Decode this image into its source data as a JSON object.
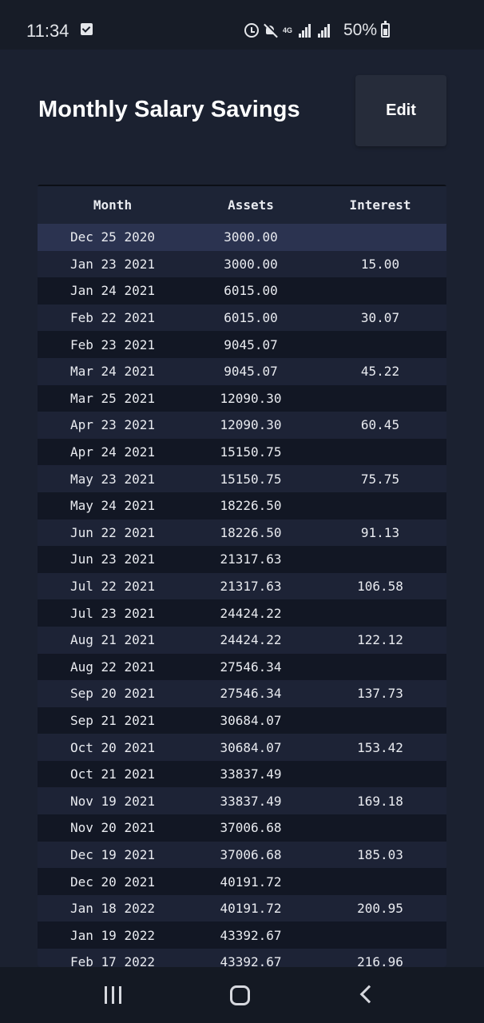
{
  "status_bar": {
    "time": "11:34",
    "network": "4G",
    "battery": "50%",
    "icons": [
      "check-notification-icon",
      "alarm-icon",
      "mute-icon",
      "signal-icon",
      "battery-icon"
    ]
  },
  "header": {
    "title": "Monthly Salary Savings",
    "edit_label": "Edit"
  },
  "table": {
    "columns": [
      "Month",
      "Assets",
      "Interest"
    ],
    "rows": [
      {
        "month": "Dec 25 2020",
        "assets": "3000.00",
        "interest": ""
      },
      {
        "month": "Jan 23 2021",
        "assets": "3000.00",
        "interest": "15.00"
      },
      {
        "month": "Jan 24 2021",
        "assets": "6015.00",
        "interest": ""
      },
      {
        "month": "Feb 22 2021",
        "assets": "6015.00",
        "interest": "30.07"
      },
      {
        "month": "Feb 23 2021",
        "assets": "9045.07",
        "interest": ""
      },
      {
        "month": "Mar 24 2021",
        "assets": "9045.07",
        "interest": "45.22"
      },
      {
        "month": "Mar 25 2021",
        "assets": "12090.30",
        "interest": ""
      },
      {
        "month": "Apr 23 2021",
        "assets": "12090.30",
        "interest": "60.45"
      },
      {
        "month": "Apr 24 2021",
        "assets": "15150.75",
        "interest": ""
      },
      {
        "month": "May 23 2021",
        "assets": "15150.75",
        "interest": "75.75"
      },
      {
        "month": "May 24 2021",
        "assets": "18226.50",
        "interest": ""
      },
      {
        "month": "Jun 22 2021",
        "assets": "18226.50",
        "interest": "91.13"
      },
      {
        "month": "Jun 23 2021",
        "assets": "21317.63",
        "interest": ""
      },
      {
        "month": "Jul 22 2021",
        "assets": "21317.63",
        "interest": "106.58"
      },
      {
        "month": "Jul 23 2021",
        "assets": "24424.22",
        "interest": ""
      },
      {
        "month": "Aug 21 2021",
        "assets": "24424.22",
        "interest": "122.12"
      },
      {
        "month": "Aug 22 2021",
        "assets": "27546.34",
        "interest": ""
      },
      {
        "month": "Sep 20 2021",
        "assets": "27546.34",
        "interest": "137.73"
      },
      {
        "month": "Sep 21 2021",
        "assets": "30684.07",
        "interest": ""
      },
      {
        "month": "Oct 20 2021",
        "assets": "30684.07",
        "interest": "153.42"
      },
      {
        "month": "Oct 21 2021",
        "assets": "33837.49",
        "interest": ""
      },
      {
        "month": "Nov 19 2021",
        "assets": "33837.49",
        "interest": "169.18"
      },
      {
        "month": "Nov 20 2021",
        "assets": "37006.68",
        "interest": ""
      },
      {
        "month": "Dec 19 2021",
        "assets": "37006.68",
        "interest": "185.03"
      },
      {
        "month": "Dec 20 2021",
        "assets": "40191.72",
        "interest": ""
      },
      {
        "month": "Jan 18 2022",
        "assets": "40191.72",
        "interest": "200.95"
      },
      {
        "month": "Jan 19 2022",
        "assets": "43392.67",
        "interest": ""
      },
      {
        "month": "Feb 17 2022",
        "assets": "43392.67",
        "interest": "216.96"
      }
    ]
  },
  "nav_bar": {
    "icons": [
      "recents-icon",
      "home-icon",
      "back-icon"
    ]
  },
  "colors": {
    "background": "#1b2130",
    "status_bar": "#171c27",
    "header_row": "#1d2436",
    "row_odd": "#1d2336",
    "row_even": "#121724",
    "row_selected": "#2b3350",
    "edit_button": "#262c3a",
    "text": "#e9ebf0"
  }
}
